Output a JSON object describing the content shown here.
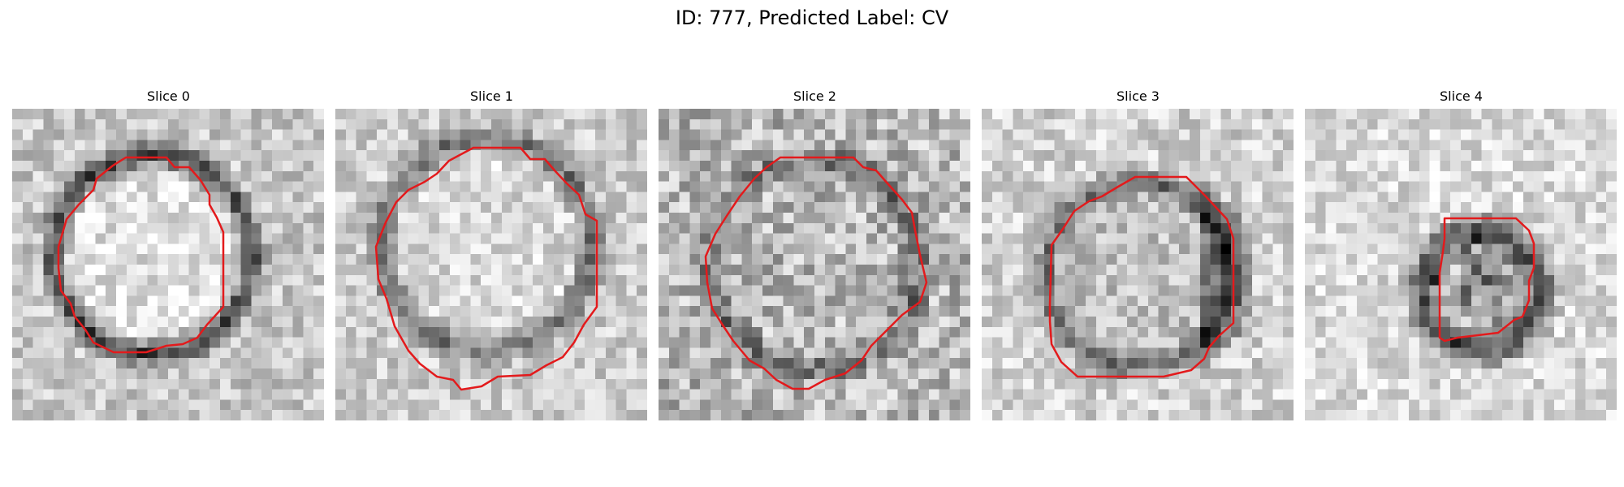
{
  "figure": {
    "title": "ID: 777, Predicted Label: CV"
  },
  "colors": {
    "contour": "#e31a1c",
    "background": "#ffffff"
  },
  "slices": [
    {
      "title": "Slice 0",
      "ring_style": "dark-ring-bright-center"
    },
    {
      "title": "Slice 1",
      "ring_style": "dark-ring-bright-center"
    },
    {
      "title": "Slice 2",
      "ring_style": "faint-ring-noisy"
    },
    {
      "title": "Slice 3",
      "ring_style": "dark-ring-right-heavy"
    },
    {
      "title": "Slice 4",
      "ring_style": "small-dark-blob"
    }
  ]
}
